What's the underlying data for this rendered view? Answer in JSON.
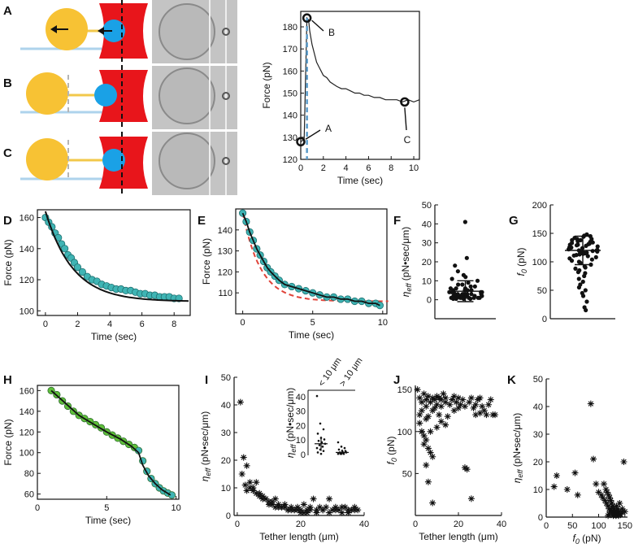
{
  "figure": {
    "panel_letters": [
      "A",
      "B",
      "C",
      "D",
      "E",
      "F",
      "G",
      "H",
      "I",
      "J",
      "K"
    ],
    "trace_annotations": [
      "B",
      "A",
      "C"
    ],
    "colors": {
      "bead": "#f7c234",
      "cell_bead": "#1aa1e6",
      "trap": "#e8151b",
      "tether": "#f2c84b",
      "substrate": "#aed3ec",
      "fit_teal": "#3fb4b4",
      "fit_green": "#5fbf3a",
      "dashed_blue": "#5a9bc9",
      "dashed_red": "#e0443a"
    },
    "icons": [
      "arrow-left-icon"
    ]
  },
  "chart_data": [
    {
      "id": "panel-A-trace",
      "type": "line",
      "title": "",
      "xlabel": "Time (sec)",
      "ylabel": "Force (pN)",
      "xlim": [
        0,
        10.5
      ],
      "ylim": [
        120,
        187
      ],
      "xticks": [
        0,
        2,
        4,
        6,
        8,
        10
      ],
      "yticks": [
        120,
        130,
        140,
        150,
        160,
        170,
        180
      ],
      "x": [
        0.0,
        0.3,
        0.55,
        0.7,
        0.8,
        1.0,
        1.2,
        1.4,
        1.6,
        1.8,
        2.0,
        2.3,
        2.6,
        2.9,
        3.2,
        3.6,
        4.0,
        4.4,
        4.8,
        5.2,
        5.6,
        6.0,
        6.5,
        7.0,
        7.5,
        8.0,
        8.5,
        9.0,
        9.5,
        10.0,
        10.5
      ],
      "y": [
        128,
        129,
        184,
        183,
        178,
        172,
        168,
        164,
        162,
        160,
        158,
        157,
        155,
        154,
        153,
        152,
        152,
        151,
        150,
        150,
        149,
        149,
        148,
        148,
        147,
        147,
        147,
        146,
        147,
        146,
        147
      ],
      "markers": [
        {
          "label": "A",
          "x": 0,
          "y": 128
        },
        {
          "label": "B",
          "x": 0.55,
          "y": 184
        },
        {
          "label": "C",
          "x": 9.2,
          "y": 146
        }
      ]
    },
    {
      "id": "panel-D",
      "type": "scatter",
      "xlabel": "Time (sec)",
      "ylabel": "Force (pN)",
      "xlim": [
        -0.5,
        9
      ],
      "ylim": [
        97,
        165
      ],
      "xticks": [
        0,
        2,
        4,
        6,
        8
      ],
      "yticks": [
        100,
        120,
        140,
        160
      ],
      "x": [
        0,
        0.2,
        0.4,
        0.6,
        0.8,
        1.0,
        1.2,
        1.4,
        1.6,
        1.8,
        2.0,
        2.3,
        2.6,
        2.9,
        3.2,
        3.5,
        3.8,
        4.1,
        4.4,
        4.7,
        5.0,
        5.3,
        5.6,
        5.9,
        6.2,
        6.5,
        6.8,
        7.1,
        7.4,
        7.7,
        8.0,
        8.3
      ],
      "y": [
        160,
        157,
        154,
        150,
        147,
        143,
        140,
        136,
        134,
        131,
        128,
        125,
        122,
        120,
        119,
        117,
        116,
        115,
        114,
        114,
        113,
        113,
        112,
        111,
        111,
        110,
        110,
        109,
        109,
        109,
        108,
        108
      ],
      "fit": {
        "model": "exp",
        "a": 106,
        "b": 58,
        "tau": 1.7
      }
    },
    {
      "id": "panel-E",
      "type": "scatter",
      "xlabel": "Time (sec)",
      "ylabel": "Force (pN)",
      "xlim": [
        -0.5,
        10.3
      ],
      "ylim": [
        100,
        150
      ],
      "xticks": [
        0,
        5,
        10
      ],
      "yticks": [
        110,
        120,
        130,
        140
      ],
      "x": [
        0,
        0.25,
        0.5,
        0.75,
        1.0,
        1.25,
        1.5,
        1.75,
        2.0,
        2.3,
        2.6,
        3.0,
        3.5,
        4.0,
        4.5,
        5.0,
        5.5,
        6.0,
        6.5,
        7.0,
        7.5,
        8.0,
        8.5,
        9.0,
        9.5,
        9.8
      ],
      "y": [
        148,
        144,
        139,
        135,
        131,
        128,
        125,
        122,
        120,
        118,
        116,
        114,
        113,
        112,
        111,
        110,
        109,
        108,
        108,
        107,
        107,
        106,
        106,
        105,
        105,
        104
      ],
      "fit": {
        "model": "exp",
        "a": 106,
        "b": 42,
        "tau": 1.3
      }
    },
    {
      "id": "panel-F",
      "type": "scatter",
      "xlabel": "",
      "ylabel": "η_eff (pN•sec/μm)",
      "ylim": [
        -10,
        50
      ],
      "yticks": [
        0,
        10,
        20,
        30,
        40,
        50
      ],
      "values": [
        41,
        22,
        18,
        15,
        13,
        12,
        11,
        10,
        9,
        8,
        8,
        7,
        7,
        6,
        6,
        6,
        5,
        5,
        5,
        5,
        4,
        4,
        4,
        4,
        4,
        3,
        3,
        3,
        3,
        3,
        3,
        3,
        2,
        2,
        2,
        2,
        2,
        2,
        2,
        2,
        2,
        1,
        1,
        1,
        1,
        1,
        1,
        1,
        1,
        1,
        1,
        0.5,
        0.5,
        0.5,
        0.5
      ],
      "mean": 4.5,
      "sd_low": -1,
      "sd_high": 10
    },
    {
      "id": "panel-G",
      "type": "scatter",
      "xlabel": "",
      "ylabel": "f_0 (pN)",
      "ylim": [
        0,
        200
      ],
      "yticks": [
        0,
        50,
        100,
        150,
        200
      ],
      "values": [
        148,
        146,
        145,
        144,
        142,
        140,
        140,
        138,
        138,
        136,
        135,
        134,
        133,
        132,
        131,
        130,
        130,
        129,
        128,
        127,
        126,
        125,
        125,
        124,
        123,
        122,
        121,
        120,
        120,
        119,
        118,
        118,
        117,
        116,
        115,
        114,
        113,
        112,
        111,
        110,
        108,
        106,
        104,
        102,
        100,
        98,
        95,
        92,
        90,
        88,
        85,
        82,
        80,
        75,
        70,
        65,
        60,
        55,
        50,
        45,
        40,
        30,
        20,
        15
      ],
      "mean": 120,
      "sd_low": 95,
      "sd_high": 145
    },
    {
      "id": "panel-H",
      "type": "scatter",
      "xlabel": "Time (sec)",
      "ylabel": "Force (pN)",
      "xlim": [
        0,
        10.2
      ],
      "ylim": [
        55,
        165
      ],
      "xticks": [
        0,
        5,
        10
      ],
      "yticks": [
        60,
        80,
        100,
        120,
        140,
        160
      ],
      "x": [
        1.0,
        1.4,
        1.8,
        2.2,
        2.6,
        3.0,
        3.4,
        3.8,
        4.2,
        4.6,
        5.0,
        5.4,
        5.8,
        6.2,
        6.6,
        7.0,
        7.3,
        7.6,
        7.9,
        8.2,
        8.5,
        8.8,
        9.1,
        9.4,
        9.7
      ],
      "y": [
        160,
        156,
        150,
        145,
        140,
        136,
        133,
        130,
        127,
        124,
        120,
        117,
        114,
        111,
        108,
        105,
        102,
        92,
        82,
        75,
        70,
        66,
        63,
        61,
        59
      ],
      "fit": {
        "model": "piecewise",
        "x": [
          1.0,
          2.0,
          3.0,
          4.0,
          5.0,
          6.0,
          6.8,
          7.3,
          7.6,
          8.0,
          8.5,
          9.0,
          9.6
        ],
        "y": [
          160,
          148,
          136,
          128,
          120,
          113,
          106,
          100,
          88,
          78,
          70,
          64,
          59
        ]
      }
    },
    {
      "id": "panel-I",
      "type": "scatter",
      "xlabel": "Tether length (μm)",
      "ylabel": "η_eff (pN•sec/μm)",
      "xlim": [
        -1,
        40
      ],
      "ylim": [
        0,
        50
      ],
      "xticks": [
        0,
        20,
        40
      ],
      "yticks": [
        0,
        10,
        20,
        30,
        40,
        50
      ],
      "x": [
        1,
        2,
        3,
        1.5,
        2.5,
        4,
        5,
        6,
        7,
        8,
        9,
        10,
        11,
        12,
        13,
        14,
        15,
        16,
        17,
        18,
        19,
        20,
        21,
        22,
        23,
        24,
        25,
        26,
        27,
        28,
        29,
        30,
        31,
        32,
        33,
        34,
        35,
        36,
        37,
        38,
        3,
        5,
        7,
        9,
        11,
        13,
        15,
        17,
        19,
        21,
        23,
        25,
        27,
        29,
        31,
        33,
        35,
        37,
        4,
        6,
        8,
        10,
        12,
        14,
        16,
        18,
        20,
        22
      ],
      "y": [
        41,
        21,
        18,
        15,
        11,
        10,
        9,
        12,
        8,
        7,
        6,
        5,
        4,
        6,
        3,
        3,
        4,
        2,
        3,
        2,
        3,
        2,
        4,
        2,
        3,
        6,
        2,
        3,
        2,
        3,
        6,
        2,
        3,
        2,
        1,
        3,
        2,
        2,
        3,
        2,
        9,
        10,
        7,
        6,
        5,
        4,
        3,
        2,
        2,
        1,
        2,
        1,
        2,
        1,
        2,
        3,
        1,
        2,
        12,
        8,
        6,
        4,
        3,
        3,
        2,
        2,
        1,
        1
      ],
      "inset": {
        "ylabel": "η_eff (pN•sec/μm)",
        "ylim": [
          0,
          45
        ],
        "yticks": [
          0,
          10,
          20,
          30,
          40
        ],
        "groups": [
          "< 10 μm",
          "> 10 μm"
        ],
        "group1": [
          41,
          22,
          18,
          15,
          12,
          11,
          10,
          9,
          8,
          7,
          6,
          5,
          4,
          3,
          2,
          1
        ],
        "group2": [
          9,
          6,
          5,
          4,
          3,
          3,
          2,
          2,
          2,
          1,
          1,
          1,
          1
        ],
        "mean1": 8,
        "sd1": [
          3,
          13
        ],
        "mean2": 2,
        "sd2": [
          1,
          4
        ]
      }
    },
    {
      "id": "panel-J",
      "type": "scatter",
      "xlabel": "Tether length (μm)",
      "ylabel": "f_0 (pN)",
      "xlim": [
        0,
        40
      ],
      "ylim": [
        0,
        155
      ],
      "xticks": [
        0,
        20,
        40
      ],
      "yticks": [
        50,
        100,
        150
      ],
      "x": [
        1,
        2,
        2,
        3,
        3,
        4,
        4,
        5,
        5,
        5,
        6,
        6,
        6,
        7,
        7,
        8,
        8,
        8,
        9,
        9,
        10,
        10,
        11,
        11,
        12,
        12,
        13,
        14,
        14,
        15,
        16,
        17,
        18,
        18,
        19,
        20,
        20,
        21,
        22,
        23,
        24,
        25,
        26,
        27,
        28,
        28,
        29,
        30,
        30,
        31,
        32,
        33,
        34,
        35,
        36,
        37,
        2,
        3,
        4,
        5,
        6,
        7,
        8,
        10,
        12,
        14,
        23,
        26,
        3,
        5
      ],
      "y": [
        150,
        140,
        120,
        135,
        100,
        145,
        85,
        138,
        130,
        60,
        142,
        118,
        40,
        135,
        100,
        140,
        125,
        15,
        138,
        128,
        142,
        132,
        140,
        120,
        138,
        130,
        145,
        140,
        135,
        118,
        132,
        138,
        142,
        125,
        135,
        140,
        128,
        132,
        138,
        130,
        55,
        135,
        140,
        128,
        132,
        120,
        138,
        122,
        140,
        130,
        125,
        120,
        132,
        138,
        120,
        120,
        110,
        100,
        95,
        90,
        80,
        75,
        70,
        105,
        112,
        108,
        57,
        20,
        125,
        115
      ]
    },
    {
      "id": "panel-K",
      "type": "scatter",
      "xlabel": "f_0 (pN)",
      "ylabel": "η_eff (pN•sec/μm)",
      "xlim": [
        0,
        155
      ],
      "ylim": [
        0,
        50
      ],
      "xticks": [
        0,
        50,
        100,
        150
      ],
      "yticks": [
        0,
        10,
        20,
        30,
        40,
        50
      ],
      "x": [
        15,
        20,
        40,
        55,
        60,
        85,
        90,
        95,
        100,
        105,
        108,
        110,
        112,
        114,
        115,
        116,
        118,
        119,
        120,
        121,
        122,
        123,
        124,
        125,
        126,
        127,
        128,
        130,
        132,
        134,
        135,
        136,
        138,
        140,
        142,
        145,
        148,
        150,
        120,
        125,
        130,
        135,
        140,
        145,
        118,
        128,
        133,
        138
      ],
      "y": [
        11,
        15,
        10,
        16,
        8,
        41,
        21,
        12,
        9,
        8,
        7,
        12,
        6,
        10,
        5,
        9,
        4,
        8,
        3,
        7,
        2,
        6,
        3,
        5,
        1,
        4,
        2,
        3,
        2,
        4,
        1,
        3,
        2,
        5,
        1,
        3,
        20,
        2,
        1,
        2,
        1,
        2,
        1,
        2,
        0.5,
        0.5,
        0.5,
        0.5
      ]
    }
  ]
}
